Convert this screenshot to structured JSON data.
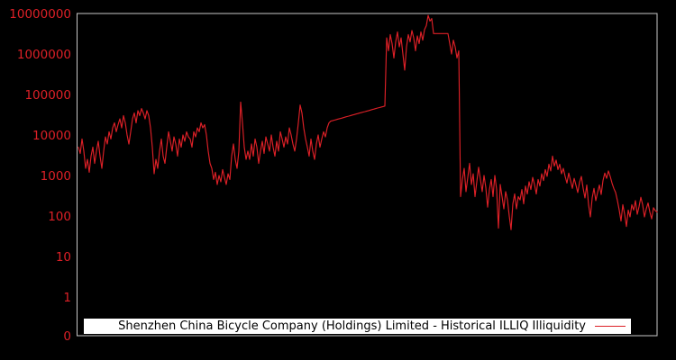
{
  "chart_data": {
    "type": "line",
    "title": "",
    "xlabel": "",
    "ylabel": "",
    "yscale": "symlog",
    "ylim": [
      0,
      10000000
    ],
    "yticks": [
      10000000,
      1000000,
      100000,
      10000,
      1000,
      100,
      10,
      1,
      0
    ],
    "ytick_labels": [
      "10000000",
      "1000000",
      "100000",
      "10000",
      "1000",
      "100",
      "10",
      "1",
      "0"
    ],
    "xtick_labels": [],
    "grid": false,
    "legend_position": "lower center",
    "colors": {
      "background": "#000000",
      "spine": "#c8c8c8",
      "line": "#dd2027",
      "tick_label": "#dd2027",
      "legend_bg": "#ffffff",
      "legend_text": "#000000"
    },
    "series": [
      {
        "name": "Shenzhen China Bicycle Company (Holdings) Limited - Historical ILLIQ Illiquidity",
        "values": [
          5000,
          3500,
          8000,
          4000,
          1500,
          2500,
          1200,
          3000,
          5000,
          2000,
          4000,
          7000,
          3000,
          1500,
          4000,
          9000,
          6000,
          12000,
          8000,
          15000,
          20000,
          12000,
          18000,
          25000,
          15000,
          30000,
          20000,
          10000,
          6000,
          12000,
          25000,
          35000,
          20000,
          40000,
          30000,
          45000,
          35000,
          25000,
          40000,
          30000,
          15000,
          5000,
          1100,
          2500,
          1500,
          4000,
          8000,
          3000,
          2000,
          5000,
          12000,
          7000,
          4000,
          9000,
          6000,
          3000,
          8000,
          5000,
          10000,
          7000,
          12000,
          9000,
          8000,
          5000,
          12000,
          9000,
          15000,
          12000,
          20000,
          15000,
          18000,
          10000,
          4000,
          2000,
          1500,
          800,
          1200,
          600,
          1000,
          700,
          1400,
          900,
          600,
          1100,
          800,
          3000,
          6000,
          2500,
          1500,
          4000,
          65000,
          20000,
          5000,
          2500,
          4000,
          2500,
          6000,
          3000,
          8000,
          5000,
          2000,
          4000,
          7000,
          3500,
          9000,
          6000,
          4000,
          10000,
          5000,
          3000,
          7000,
          4000,
          12000,
          8000,
          5000,
          9000,
          6000,
          15000,
          10000,
          6000,
          4000,
          8000,
          20000,
          55000,
          35000,
          15000,
          8000,
          5000,
          3000,
          8000,
          4000,
          2500,
          6000,
          10000,
          5000,
          8000,
          12000,
          9000,
          15000,
          20000,
          22000,
          22600,
          23300,
          24000,
          24700,
          25400,
          26100,
          26900,
          27700,
          28500,
          29300,
          30200,
          31100,
          32000,
          32900,
          33800,
          34800,
          35800,
          36800,
          37900,
          39000,
          40100,
          41300,
          42500,
          43700,
          45000,
          46300,
          47600,
          49000,
          50400,
          52000,
          2500000,
          1200000,
          3000000,
          1800000,
          800000,
          2000000,
          3500000,
          1500000,
          2500000,
          1000000,
          400000,
          1500000,
          3000000,
          2000000,
          3800000,
          2500000,
          1200000,
          2800000,
          1800000,
          3500000,
          2200000,
          4000000,
          5000000,
          9000000,
          6500000,
          7500000,
          3200000,
          3200000,
          3200000,
          3200000,
          3200000,
          3200000,
          3200000,
          3200000,
          3200000,
          1800000,
          1000000,
          2200000,
          1500000,
          800000,
          1200000,
          300,
          800,
          1500,
          400,
          900,
          2000,
          600,
          1100,
          300,
          700,
          1600,
          800,
          400,
          1000,
          500,
          165,
          450,
          800,
          300,
          1000,
          450,
          50,
          600,
          300,
          150,
          400,
          250,
          100,
          46,
          200,
          350,
          150,
          300,
          250,
          450,
          200,
          550,
          350,
          700,
          450,
          900,
          600,
          350,
          800,
          550,
          1100,
          750,
          1400,
          950,
          1900,
          1300,
          3000,
          1700,
          2400,
          1400,
          1900,
          1100,
          1500,
          950,
          650,
          1150,
          750,
          480,
          850,
          580,
          380,
          680,
          950,
          480,
          280,
          580,
          190,
          95,
          280,
          480,
          240,
          380,
          580,
          340,
          750,
          1150,
          850,
          1300,
          950,
          650,
          480,
          380,
          240,
          140,
          75,
          190,
          110,
          55,
          140,
          95,
          190,
          140,
          240,
          110,
          170,
          290,
          190,
          95,
          150,
          210,
          125,
          85,
          160,
          135,
          125
        ]
      }
    ]
  }
}
